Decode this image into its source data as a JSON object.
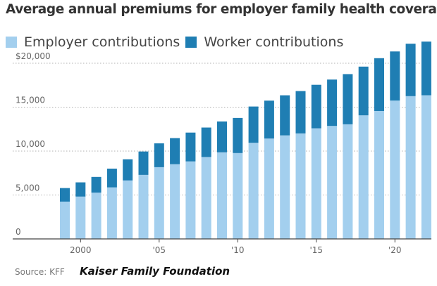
{
  "colors": {
    "employer": "#a3cfee",
    "worker": "#1f7eb3",
    "grid": "#b0b0b0",
    "tick_text": "#666666",
    "axis": "#444444"
  },
  "footer": {
    "source": "Source: KFF",
    "attribution": "Kaiser Family Foundation"
  },
  "chart_data": {
    "type": "bar",
    "stacked": true,
    "title": "Average annual premiums for employer family health coverage",
    "x": [
      1999,
      2000,
      2001,
      2002,
      2003,
      2004,
      2005,
      2006,
      2007,
      2008,
      2009,
      2010,
      2011,
      2012,
      2013,
      2014,
      2015,
      2016,
      2017,
      2018,
      2019,
      2020,
      2021,
      2022
    ],
    "x_tick_labels": [
      {
        "x": 2000,
        "label": "2000"
      },
      {
        "x": 2005,
        "label": "'05"
      },
      {
        "x": 2010,
        "label": "'10"
      },
      {
        "x": 2015,
        "label": "'15"
      },
      {
        "x": 2020,
        "label": "'20"
      }
    ],
    "series": [
      {
        "name": "Employer contributions",
        "values": [
          4247,
          4819,
          5269,
          5866,
          6657,
          7289,
          8167,
          8508,
          8824,
          9325,
          9860,
          9773,
          10944,
          11429,
          11786,
          12011,
          12591,
          12865,
          13049,
          14069,
          14561,
          15754,
          16253,
          16357
        ]
      },
      {
        "name": "Worker contributions",
        "values": [
          1543,
          1619,
          1787,
          2137,
          2412,
          2661,
          2713,
          2973,
          3281,
          3354,
          3515,
          3997,
          4129,
          4316,
          4565,
          4823,
          4955,
          5277,
          5714,
          5547,
          6015,
          5588,
          5969,
          6106
        ]
      }
    ],
    "y_ticks": [
      {
        "value": 0,
        "label": "0"
      },
      {
        "value": 5000,
        "label": "5,000"
      },
      {
        "value": 10000,
        "label": "10,000"
      },
      {
        "value": 15000,
        "label": "15,000"
      },
      {
        "value": 20000,
        "label": "$20,000"
      }
    ],
    "ylim": [
      0,
      24000
    ],
    "grid": "horizontal dotted",
    "legend": "top-left"
  }
}
